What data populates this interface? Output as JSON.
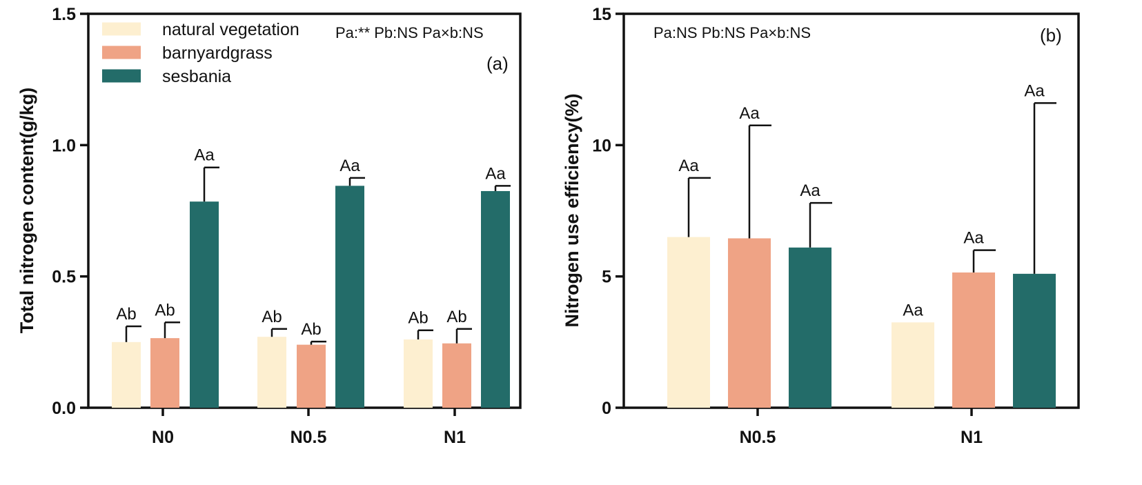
{
  "chart_data": [
    {
      "type": "bar",
      "panel_label": "(a)",
      "ylabel": "Total nitrogen content(g/kg)",
      "xlabel": "",
      "ylim": [
        0,
        1.5
      ],
      "yticks": [
        "0.0",
        "0.5",
        "1.0",
        "1.5"
      ],
      "categories": [
        "N0",
        "N0.5",
        "N1"
      ],
      "stats_text": "Pa:** Pb:NS Pa×b:NS",
      "legend_position": "top-left",
      "series": [
        {
          "name": "natural vegetation",
          "color": "#FDEFD0",
          "values": [
            0.25,
            0.27,
            0.26
          ],
          "errors": [
            0.06,
            0.03,
            0.035
          ],
          "labels": [
            "Ab",
            "Ab",
            "Ab"
          ]
        },
        {
          "name": "barnyardgrass",
          "color": "#EFA385",
          "values": [
            0.265,
            0.24,
            0.245
          ],
          "errors": [
            0.06,
            0.012,
            0.055
          ],
          "labels": [
            "Ab",
            "Ab",
            "Ab"
          ]
        },
        {
          "name": "sesbania",
          "color": "#236C69",
          "values": [
            0.785,
            0.845,
            0.825
          ],
          "errors": [
            0.13,
            0.03,
            0.02
          ],
          "labels": [
            "Aa",
            "Aa",
            "Aa"
          ]
        }
      ]
    },
    {
      "type": "bar",
      "panel_label": "(b)",
      "ylabel": "Nitrogen use efficiency(%)",
      "xlabel": "",
      "ylim": [
        0,
        15
      ],
      "yticks": [
        "0",
        "5",
        "10",
        "15"
      ],
      "categories": [
        "N0.5",
        "N1"
      ],
      "stats_text": "Pa:NS Pb:NS Pa×b:NS",
      "series": [
        {
          "name": "natural vegetation",
          "color": "#FDEFD0",
          "values": [
            6.5,
            3.25
          ],
          "errors": [
            2.25,
            0
          ],
          "labels": [
            "Aa",
            "Aa"
          ]
        },
        {
          "name": "barnyardgrass",
          "color": "#EFA385",
          "values": [
            6.45,
            5.15
          ],
          "errors": [
            4.3,
            0.85
          ],
          "labels": [
            "Aa",
            "Aa"
          ]
        },
        {
          "name": "sesbania",
          "color": "#236C69",
          "values": [
            6.1,
            5.1
          ],
          "errors": [
            1.7,
            6.5
          ],
          "labels": [
            "Aa",
            "Aa"
          ]
        }
      ]
    }
  ]
}
